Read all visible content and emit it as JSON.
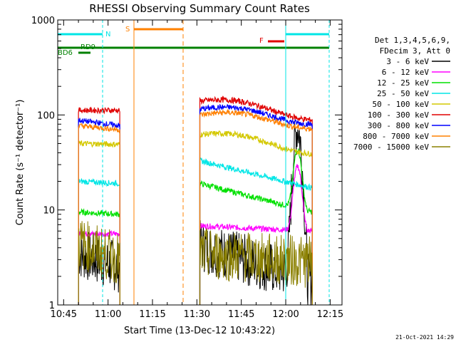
{
  "chart_data": {
    "type": "line",
    "title": "RHESSI Observing Summary Count Rates",
    "xlabel": "Start Time (13-Dec-12 10:43:22)",
    "ylabel": "Count Rate (s⁻¹ detector⁻¹)",
    "yscale": "log",
    "ylim": [
      1,
      1000
    ],
    "xlim_minutes": [
      643,
      739
    ],
    "x_ticks": [
      {
        "label": "10:45",
        "minute": 645
      },
      {
        "label": "11:00",
        "minute": 660
      },
      {
        "label": "11:15",
        "minute": 675
      },
      {
        "label": "11:30",
        "minute": 690
      },
      {
        "label": "11:45",
        "minute": 705
      },
      {
        "label": "12:00",
        "minute": 720
      },
      {
        "label": "12:15",
        "minute": 735
      }
    ],
    "y_ticks": [
      {
        "label": "1",
        "value": 1
      },
      {
        "label": "10",
        "value": 10
      },
      {
        "label": "100",
        "value": 100
      },
      {
        "label": "1000",
        "value": 1000
      }
    ],
    "legend_header": [
      "Det 1,3,4,5,6,9,",
      "FDecim 3, Att 0"
    ],
    "legend_placement": "right",
    "series": [
      {
        "name": "3 - 6 keV",
        "color": "#000000",
        "s1": [
          3.5,
          2.5
        ],
        "s2": [
          4.2,
          1.8
        ]
      },
      {
        "name": "6 - 12 keV",
        "color": "#ff00ff",
        "s1": [
          5.6,
          5.6
        ],
        "s2": [
          6.8,
          6.0
        ]
      },
      {
        "name": "12 - 25 keV",
        "color": "#00e000",
        "s1": [
          9.5,
          9.0
        ],
        "s2": [
          19,
          9.5
        ]
      },
      {
        "name": "25 - 50 keV",
        "color": "#00e6e6",
        "s1": [
          20,
          19
        ],
        "s2": [
          33,
          17
        ]
      },
      {
        "name": "50 - 100 keV",
        "color": "#d4c800",
        "s1": [
          50,
          49
        ],
        "s2": [
          62,
          44
        ]
      },
      {
        "name": "100 - 300 keV",
        "color": "#e00000",
        "s1": [
          112,
          112
        ],
        "s2": [
          140,
          100
        ]
      },
      {
        "name": "300 - 800 keV",
        "color": "#0000ff",
        "s1": [
          88,
          77
        ],
        "s2": [
          115,
          90
        ]
      },
      {
        "name": "800 - 7000 keV",
        "color": "#ff8000",
        "s1": [
          77,
          70
        ],
        "s2": [
          100,
          81
        ]
      },
      {
        "name": "7000 - 15000 keV",
        "color": "#8b8000",
        "s1": [
          4.5,
          3.0
        ],
        "s2": [
          3.5,
          2.8
        ]
      }
    ],
    "segments_minutes": [
      [
        650,
        664
      ],
      [
        691,
        729
      ]
    ],
    "flare_peak": {
      "minute": 724,
      "value": 72
    },
    "flags": [
      {
        "label": "RD9",
        "color": "#008000"
      },
      {
        "label": "BD6",
        "color": "#008000"
      },
      {
        "label": "N",
        "color": "#00e6e6"
      },
      {
        "label": "S",
        "color": "#ff8000"
      },
      {
        "label": "F",
        "color": "#e00000"
      }
    ],
    "grid": false
  },
  "footer_date": "21-Oct-2021 14:29"
}
